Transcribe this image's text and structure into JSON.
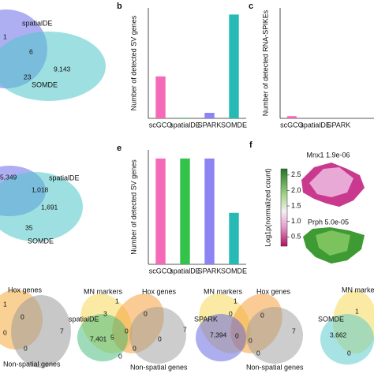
{
  "chart_data": [
    {
      "type": "bar",
      "panel": "b",
      "y_label": "Number of detected SV genes",
      "categories": [
        "scGCO",
        "spatialDE",
        "SPARK",
        "SOMDE"
      ],
      "values": [
        3800,
        50,
        500,
        9400
      ],
      "colors": [
        "#f46ab8",
        "#33c24a",
        "#8c84f2",
        "#27b9b3"
      ],
      "ylim": [
        0,
        10000
      ]
    },
    {
      "type": "bar",
      "panel": "c",
      "y_label": "Number of detected RNA-SPIKEs",
      "categories": [
        "scGCO",
        "spatialDE",
        "SPARK"
      ],
      "values": [
        2,
        0,
        0
      ],
      "colors": [
        "#f46ab8",
        "#33c24a",
        "#8c84f2"
      ],
      "ylim": [
        0,
        100
      ]
    },
    {
      "type": "bar",
      "panel": "e",
      "y_label": "Number of detected SV genes",
      "categories": [
        "scGCO",
        "spatialDE",
        "SPARK",
        "SOMDE"
      ],
      "values": [
        7400,
        7400,
        7400,
        3600
      ],
      "colors": [
        "#f46ab8",
        "#33c24a",
        "#8c84f2",
        "#27b9b3"
      ],
      "ylim": [
        0,
        8000
      ]
    }
  ],
  "panel_f": {
    "panel": "f",
    "colorbar_label": "Log1p(normalized count)",
    "colorbar_lim": [
      0.2,
      2.7
    ],
    "colorbar_ticks": [
      2.5,
      {
        "value": 2,
        "label": "2.0"
      },
      1.5,
      {
        "value": 1,
        "label": "1.0"
      },
      0.5
    ],
    "titles": [
      "Mnx1 1.9e-06",
      "Prph 5.0e-05"
    ]
  },
  "venns": [
    {
      "labels": [
        "spatialDE",
        "SOMDE"
      ],
      "counts": [
        "1",
        "6",
        "23",
        "9,143"
      ]
    },
    {
      "labels": [
        "spatialDE",
        "SOMDE"
      ],
      "counts": [
        "5,349",
        "1,018",
        "1,691",
        "35"
      ]
    },
    {
      "labels": [
        "Hox genes",
        "Non-spatial genes"
      ],
      "counts": [
        "1",
        "0",
        "7",
        "0",
        "0"
      ]
    },
    {
      "labels": [
        "MN markers",
        "Hox genes",
        "spatialDE",
        "Non-spatial genes"
      ],
      "counts": [
        "1",
        "3",
        "0",
        "7,401",
        "5",
        "0",
        "0",
        "0",
        "7",
        "0"
      ]
    },
    {
      "labels": [
        "MN markers",
        "Hox genes",
        "SPARK",
        "Non-spatial genes"
      ],
      "counts": [
        "1",
        "0",
        "0",
        "7,394",
        "0",
        "0",
        "0",
        "7"
      ]
    },
    {
      "labels": [
        "MN markers",
        "SOMDE"
      ],
      "counts": [
        "1",
        "3,662",
        "0"
      ]
    }
  ]
}
